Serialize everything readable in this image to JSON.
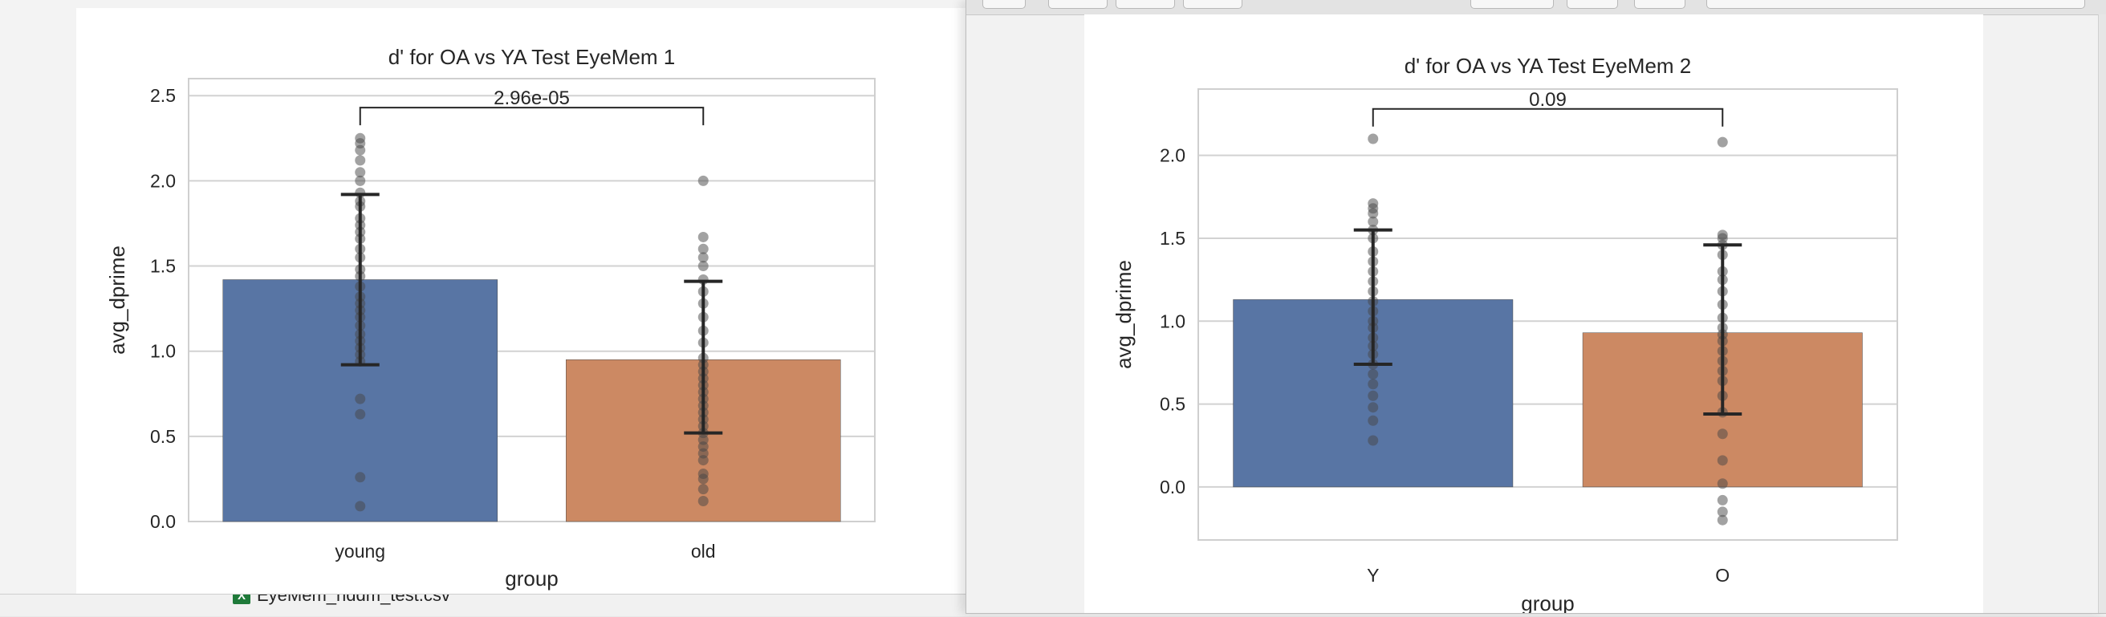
{
  "background_file": {
    "name": "EyeMem_hddm_test.csv",
    "icon": "excel-file-icon"
  },
  "chart_data": [
    {
      "type": "bar",
      "title": "d' for OA vs YA Test EyeMem 1",
      "xlabel": "group",
      "ylabel": "avg_dprime",
      "categories": [
        "young",
        "old"
      ],
      "values": [
        1.42,
        0.95
      ],
      "error_bars": [
        [
          0.92,
          1.92
        ],
        [
          0.52,
          1.41
        ]
      ],
      "colors": [
        "#5875a4",
        "#cc8963"
      ],
      "ylim": [
        0,
        2.6
      ],
      "yticks": [
        "0.0",
        "0.5",
        "1.0",
        "1.5",
        "2.0",
        "2.5"
      ],
      "grid": true,
      "annotation": "2.96e-05",
      "annotation_y": 2.43,
      "points": [
        [
          2.25,
          2.22,
          2.18,
          2.12,
          2.05,
          2.0,
          1.93,
          1.88,
          1.85,
          1.78,
          1.74,
          1.7,
          1.66,
          1.6,
          1.55,
          1.48,
          1.44,
          1.38,
          1.32,
          1.28,
          1.24,
          1.2,
          1.15,
          1.1,
          1.06,
          1.02,
          0.98,
          0.94,
          0.72,
          0.63,
          0.26,
          0.09
        ],
        [
          2.0,
          1.67,
          1.6,
          1.55,
          1.5,
          1.42,
          1.35,
          1.28,
          1.2,
          1.12,
          1.05,
          0.96,
          0.92,
          0.88,
          0.84,
          0.8,
          0.76,
          0.72,
          0.68,
          0.64,
          0.6,
          0.56,
          0.52,
          0.48,
          0.44,
          0.4,
          0.36,
          0.28,
          0.25,
          0.19,
          0.12
        ]
      ]
    },
    {
      "type": "bar",
      "title": "d' for OA vs YA Test EyeMem 2",
      "xlabel": "group",
      "ylabel": "avg_dprime",
      "categories": [
        "Y",
        "O"
      ],
      "values": [
        1.13,
        0.93
      ],
      "error_bars": [
        [
          0.74,
          1.55
        ],
        [
          0.44,
          1.46
        ]
      ],
      "colors": [
        "#5875a4",
        "#cc8963"
      ],
      "ylim": [
        -0.32,
        2.4
      ],
      "yticks": [
        "0.0",
        "0.5",
        "1.0",
        "1.5",
        "2.0"
      ],
      "grid": true,
      "annotation": "0.09",
      "annotation_y": 2.28,
      "points": [
        [
          2.1,
          1.71,
          1.68,
          1.65,
          1.6,
          1.55,
          1.5,
          1.42,
          1.36,
          1.3,
          1.24,
          1.18,
          1.12,
          1.06,
          1.0,
          0.96,
          0.9,
          0.85,
          0.8,
          0.74,
          0.68,
          0.62,
          0.55,
          0.48,
          0.4,
          0.28
        ],
        [
          2.08,
          1.52,
          1.5,
          1.46,
          1.4,
          1.3,
          1.25,
          1.18,
          1.1,
          1.02,
          0.96,
          0.92,
          0.88,
          0.82,
          0.76,
          0.7,
          0.64,
          0.55,
          0.45,
          0.32,
          0.16,
          0.02,
          -0.08,
          -0.15,
          -0.2
        ]
      ]
    }
  ]
}
